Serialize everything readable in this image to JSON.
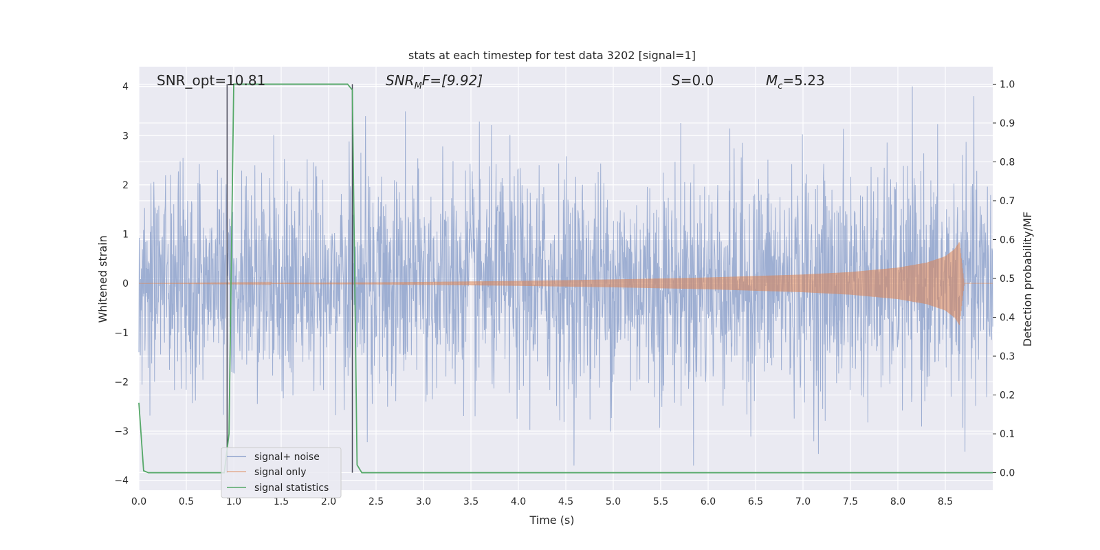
{
  "chart_data": {
    "type": "line",
    "title": "stats at each timestep for test data 3202 [signal=1]",
    "xlabel": "Time (s)",
    "ylabel": "Whitened strain",
    "y2label": "Detection probability/MF",
    "xlim": [
      0,
      9.0
    ],
    "ylim": [
      -4.2,
      4.4
    ],
    "y2lim": [
      -0.045,
      1.045
    ],
    "xticks": [
      "0.0",
      "0.5",
      "1.0",
      "1.5",
      "2.0",
      "2.5",
      "3.0",
      "3.5",
      "4.0",
      "4.5",
      "5.0",
      "5.5",
      "6.0",
      "6.5",
      "7.0",
      "7.5",
      "8.0",
      "8.5"
    ],
    "yticks": [
      "4",
      "3",
      "2",
      "1",
      "0",
      "−1",
      "−2",
      "−3",
      "−4"
    ],
    "y2ticks": [
      "1.0",
      "0.9",
      "0.8",
      "0.7",
      "0.6",
      "0.5",
      "0.4",
      "0.3",
      "0.2",
      "0.1",
      "0.0"
    ],
    "grid": true,
    "legend_position": "lower-left",
    "annotations": {
      "snr_opt": "SNR_opt=10.81",
      "snr_mf_main": "SNR",
      "snr_mf_sub": "M",
      "snr_mf_rest": "F=[9.92]",
      "s_main": "S",
      "s_rest": "=0.0",
      "mc_main": "M",
      "mc_sub": "c",
      "mc_rest": "=5.23"
    },
    "series": [
      {
        "name": "signal+ noise",
        "color": "#8fa3cc",
        "description_of_values": "whitened strain noise, bounded approximately within ±4",
        "y_range": [
          -3.7,
          4.0
        ]
      },
      {
        "name": "signal only",
        "color": "#dd8452",
        "envelope": {
          "x": [
            0.0,
            2.5,
            4.0,
            5.0,
            6.0,
            7.0,
            7.5,
            8.0,
            8.3,
            8.5,
            8.6,
            8.65,
            8.7,
            9.0
          ],
          "amp": [
            0.0,
            0.02,
            0.05,
            0.08,
            0.12,
            0.18,
            0.23,
            0.32,
            0.42,
            0.55,
            0.7,
            0.85,
            0.0,
            0.0
          ]
        }
      },
      {
        "name": "signal statistics",
        "color": "#55a868",
        "axis": "right",
        "x": [
          0.0,
          0.05,
          0.1,
          0.9,
          0.95,
          1.0,
          1.5,
          2.0,
          2.2,
          2.25,
          2.3,
          2.35,
          2.4,
          9.0
        ],
        "y": [
          0.18,
          0.005,
          0.0,
          0.0,
          0.1,
          1.0,
          1.0,
          1.0,
          1.0,
          0.985,
          0.02,
          0.0,
          0.0,
          0.0
        ]
      }
    ],
    "vertical_markers": [
      0.93,
      2.25
    ]
  },
  "legend": {
    "item1": "signal+ noise",
    "item2": "signal only",
    "item3": "signal statistics"
  }
}
